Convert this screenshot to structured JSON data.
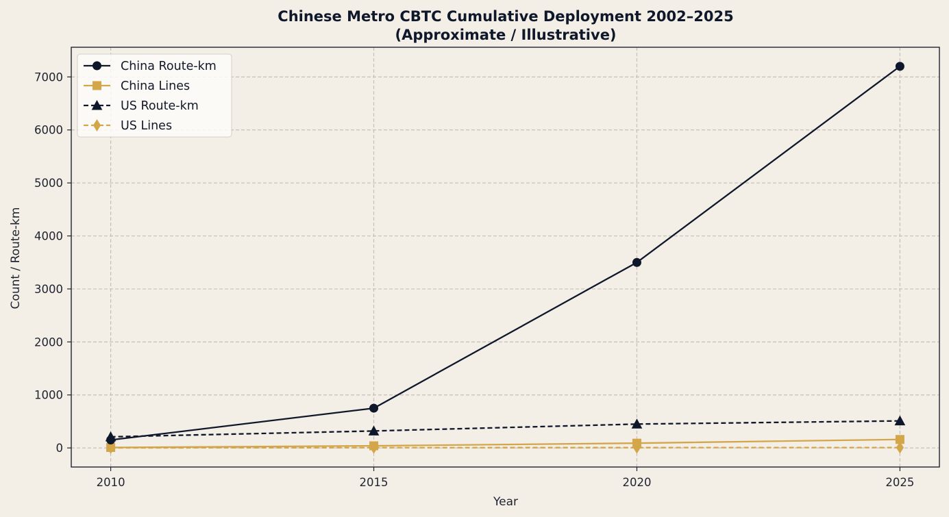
{
  "chart_data": {
    "type": "line",
    "title": "Chinese Metro CBTC Cumulative Deployment 2002–2025",
    "subtitle": "(Approximate / Illustrative)",
    "xlabel": "Year",
    "ylabel": "Count / Route-km",
    "x": [
      2010,
      2015,
      2020,
      2025
    ],
    "xlim": [
      2009.25,
      2025.75
    ],
    "ylim": [
      -360,
      7560
    ],
    "x_ticks": [
      2010,
      2015,
      2020,
      2025
    ],
    "y_ticks": [
      0,
      1000,
      2000,
      3000,
      4000,
      5000,
      6000,
      7000
    ],
    "grid": true,
    "legend_position": "top-left",
    "series": [
      {
        "name": "China Route-km",
        "values": [
          150,
          750,
          3500,
          7200
        ],
        "color": "#0f172a",
        "dashed": false,
        "marker": "circle"
      },
      {
        "name": "China Lines",
        "values": [
          8,
          40,
          90,
          160
        ],
        "color": "#d4a64a",
        "dashed": false,
        "marker": "square"
      },
      {
        "name": "US Route-km",
        "values": [
          210,
          320,
          450,
          510
        ],
        "color": "#0f172a",
        "dashed": true,
        "marker": "triangle"
      },
      {
        "name": "US Lines",
        "values": [
          2,
          5,
          6,
          7
        ],
        "color": "#d4a64a",
        "dashed": true,
        "marker": "diamond"
      }
    ]
  }
}
